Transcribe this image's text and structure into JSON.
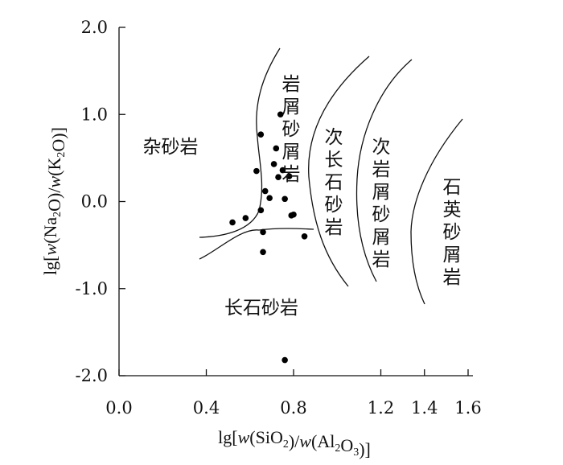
{
  "chart_data": {
    "type": "scatter",
    "title": "",
    "xlabel": "lg[w(SiO2)/w(Al2O3)]",
    "ylabel": "lg[w(Na2O)/w(K2O)]",
    "xlim": [
      0.0,
      1.6
    ],
    "ylim": [
      -2.0,
      2.0
    ],
    "x_ticks": [
      0.0,
      0.4,
      0.8,
      1.2,
      1.4,
      1.6
    ],
    "x_tick_labels": [
      "0.0",
      "0.4",
      "0.8",
      "1.2",
      "1.4",
      "1.6"
    ],
    "y_ticks": [
      2.0,
      1.0,
      0.0,
      -1.0,
      -2.0
    ],
    "y_tick_labels": [
      "2.0",
      "1.0",
      "0.0",
      "-1.0",
      "-2.0"
    ],
    "grid": false,
    "points": [
      {
        "x": 0.52,
        "y": -0.24
      },
      {
        "x": 0.58,
        "y": -0.19
      },
      {
        "x": 0.63,
        "y": 0.35
      },
      {
        "x": 0.65,
        "y": 0.77
      },
      {
        "x": 0.65,
        "y": -0.1
      },
      {
        "x": 0.66,
        "y": -0.35
      },
      {
        "x": 0.66,
        "y": -0.58
      },
      {
        "x": 0.67,
        "y": 0.12
      },
      {
        "x": 0.69,
        "y": 0.04
      },
      {
        "x": 0.71,
        "y": 0.43
      },
      {
        "x": 0.72,
        "y": 0.61
      },
      {
        "x": 0.73,
        "y": 0.28
      },
      {
        "x": 0.74,
        "y": 1.0
      },
      {
        "x": 0.75,
        "y": 0.36
      },
      {
        "x": 0.76,
        "y": 0.03
      },
      {
        "x": 0.78,
        "y": 0.29
      },
      {
        "x": 0.79,
        "y": -0.16
      },
      {
        "x": 0.8,
        "y": -0.15
      },
      {
        "x": 0.85,
        "y": -0.4
      },
      {
        "x": 0.76,
        "y": -1.82
      }
    ],
    "regions": [
      {
        "label": "杂砂岩"
      },
      {
        "label": "长石砂岩"
      },
      {
        "label": "岩屑砂屑岩"
      },
      {
        "label": "次长石砂岩"
      },
      {
        "label": "次岩屑砂屑岩"
      },
      {
        "label": "石英砂屑岩"
      }
    ]
  }
}
